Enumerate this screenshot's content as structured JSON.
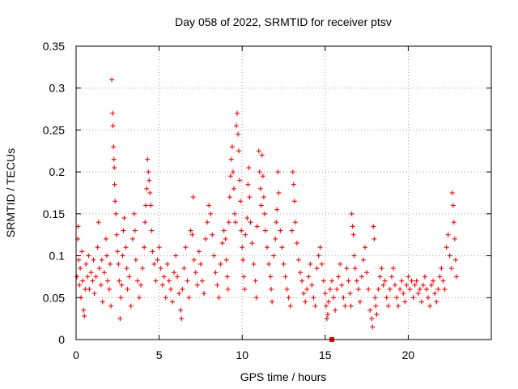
{
  "chart_data": {
    "type": "scatter",
    "title": "Day 058 of 2022, SRMTID for receiver ptsv",
    "xlabel": "GPS time / hours",
    "ylabel": "SRMTID / TECUs",
    "xlim": [
      0,
      25
    ],
    "ylim": [
      0,
      0.35
    ],
    "grid": true,
    "legend": "none",
    "marker": "plus",
    "color": "#ff0000",
    "x_ticks": [
      {
        "value": 0,
        "label": "0"
      },
      {
        "value": 5,
        "label": "5"
      },
      {
        "value": 10,
        "label": "10"
      },
      {
        "value": 15,
        "label": "15"
      },
      {
        "value": 20,
        "label": "20"
      }
    ],
    "y_ticks": [
      {
        "value": 0,
        "label": "0"
      },
      {
        "value": 0.05,
        "label": "0.05"
      },
      {
        "value": 0.1,
        "label": "0.1"
      },
      {
        "value": 0.15,
        "label": "0.15"
      },
      {
        "value": 0.2,
        "label": "0.2"
      },
      {
        "value": 0.25,
        "label": "0.25"
      },
      {
        "value": 0.3,
        "label": "0.3"
      },
      {
        "value": 0.35,
        "label": "0.35"
      }
    ],
    "series": [
      {
        "name": "SRMTID",
        "marker_at_zero_x": 15.4,
        "points": [
          [
            0.05,
            0.075
          ],
          [
            0.1,
            0.12
          ],
          [
            0.12,
            0.135
          ],
          [
            0.15,
            0.095
          ],
          [
            0.2,
            0.065
          ],
          [
            0.25,
            0.085
          ],
          [
            0.3,
            0.05
          ],
          [
            0.35,
            0.105
          ],
          [
            0.4,
            0.07
          ],
          [
            0.45,
            0.035
          ],
          [
            0.5,
            0.028
          ],
          [
            0.55,
            0.06
          ],
          [
            0.6,
            0.09
          ],
          [
            0.7,
            0.075
          ],
          [
            0.75,
            0.1
          ],
          [
            0.8,
            0.06
          ],
          [
            0.9,
            0.08
          ],
          [
            1.0,
            0.07
          ],
          [
            1.05,
            0.095
          ],
          [
            1.1,
            0.055
          ],
          [
            1.2,
            0.075
          ],
          [
            1.3,
            0.11
          ],
          [
            1.35,
            0.14
          ],
          [
            1.4,
            0.085
          ],
          [
            1.5,
            0.065
          ],
          [
            1.55,
            0.095
          ],
          [
            1.6,
            0.045
          ],
          [
            1.7,
            0.08
          ],
          [
            1.8,
            0.12
          ],
          [
            1.85,
            0.1
          ],
          [
            1.9,
            0.07
          ],
          [
            2.0,
            0.06
          ],
          [
            2.05,
            0.09
          ],
          [
            2.1,
            0.04
          ],
          [
            2.15,
            0.31
          ],
          [
            2.2,
            0.27
          ],
          [
            2.22,
            0.255
          ],
          [
            2.25,
            0.23
          ],
          [
            2.28,
            0.215
          ],
          [
            2.3,
            0.205
          ],
          [
            2.32,
            0.185
          ],
          [
            2.35,
            0.165
          ],
          [
            2.4,
            0.15
          ],
          [
            2.45,
            0.125
          ],
          [
            2.5,
            0.105
          ],
          [
            2.55,
            0.09
          ],
          [
            2.6,
            0.07
          ],
          [
            2.65,
            0.025
          ],
          [
            2.7,
            0.05
          ],
          [
            2.75,
            0.065
          ],
          [
            2.8,
            0.1
          ],
          [
            2.85,
            0.13
          ],
          [
            2.9,
            0.145
          ],
          [
            3.0,
            0.11
          ],
          [
            3.05,
            0.085
          ],
          [
            3.1,
            0.06
          ],
          [
            3.2,
            0.075
          ],
          [
            3.3,
            0.04
          ],
          [
            3.4,
            0.12
          ],
          [
            3.5,
            0.15
          ],
          [
            3.55,
            0.13
          ],
          [
            3.6,
            0.095
          ],
          [
            3.7,
            0.07
          ],
          [
            3.8,
            0.05
          ],
          [
            3.9,
            0.065
          ],
          [
            4.0,
            0.085
          ],
          [
            4.1,
            0.11
          ],
          [
            4.15,
            0.14
          ],
          [
            4.2,
            0.16
          ],
          [
            4.25,
            0.18
          ],
          [
            4.3,
            0.215
          ],
          [
            4.35,
            0.2
          ],
          [
            4.4,
            0.19
          ],
          [
            4.45,
            0.175
          ],
          [
            4.5,
            0.16
          ],
          [
            4.55,
            0.13
          ],
          [
            4.6,
            0.105
          ],
          [
            4.7,
            0.09
          ],
          [
            4.8,
            0.07
          ],
          [
            4.9,
            0.095
          ],
          [
            5.0,
            0.11
          ],
          [
            5.1,
            0.085
          ],
          [
            5.2,
            0.065
          ],
          [
            5.3,
            0.075
          ],
          [
            5.4,
            0.05
          ],
          [
            5.5,
            0.09
          ],
          [
            5.6,
            0.07
          ],
          [
            5.7,
            0.06
          ],
          [
            5.8,
            0.045
          ],
          [
            5.9,
            0.08
          ],
          [
            6.0,
            0.1
          ],
          [
            6.1,
            0.075
          ],
          [
            6.2,
            0.055
          ],
          [
            6.3,
            0.035
          ],
          [
            6.35,
            0.025
          ],
          [
            6.4,
            0.06
          ],
          [
            6.5,
            0.085
          ],
          [
            6.6,
            0.11
          ],
          [
            6.7,
            0.07
          ],
          [
            6.8,
            0.05
          ],
          [
            6.9,
            0.13
          ],
          [
            7.0,
            0.125
          ],
          [
            7.05,
            0.17
          ],
          [
            7.1,
            0.095
          ],
          [
            7.2,
            0.08
          ],
          [
            7.3,
            0.065
          ],
          [
            7.4,
            0.105
          ],
          [
            7.5,
            0.09
          ],
          [
            7.6,
            0.07
          ],
          [
            7.7,
            0.055
          ],
          [
            7.8,
            0.12
          ],
          [
            7.9,
            0.14
          ],
          [
            8.0,
            0.16
          ],
          [
            8.1,
            0.15
          ],
          [
            8.2,
            0.125
          ],
          [
            8.3,
            0.1
          ],
          [
            8.4,
            0.08
          ],
          [
            8.5,
            0.065
          ],
          [
            8.6,
            0.05
          ],
          [
            8.7,
            0.09
          ],
          [
            8.8,
            0.115
          ],
          [
            8.9,
            0.13
          ],
          [
            9.0,
            0.12
          ],
          [
            9.05,
            0.095
          ],
          [
            9.1,
            0.075
          ],
          [
            9.15,
            0.06
          ],
          [
            9.2,
            0.14
          ],
          [
            9.25,
            0.17
          ],
          [
            9.3,
            0.195
          ],
          [
            9.35,
            0.215
          ],
          [
            9.4,
            0.23
          ],
          [
            9.45,
            0.2
          ],
          [
            9.5,
            0.18
          ],
          [
            9.55,
            0.15
          ],
          [
            9.6,
            0.14
          ],
          [
            9.65,
            0.255
          ],
          [
            9.7,
            0.27
          ],
          [
            9.75,
            0.245
          ],
          [
            9.8,
            0.225
          ],
          [
            9.85,
            0.19
          ],
          [
            9.9,
            0.165
          ],
          [
            9.95,
            0.13
          ],
          [
            10.0,
            0.11
          ],
          [
            10.05,
            0.095
          ],
          [
            10.1,
            0.075
          ],
          [
            10.15,
            0.06
          ],
          [
            10.2,
            0.125
          ],
          [
            10.3,
            0.145
          ],
          [
            10.35,
            0.185
          ],
          [
            10.4,
            0.205
          ],
          [
            10.45,
            0.17
          ],
          [
            10.5,
            0.14
          ],
          [
            10.6,
            0.115
          ],
          [
            10.7,
            0.09
          ],
          [
            10.8,
            0.07
          ],
          [
            10.85,
            0.05
          ],
          [
            10.9,
            0.135
          ],
          [
            11.0,
            0.225
          ],
          [
            11.05,
            0.2
          ],
          [
            11.1,
            0.18
          ],
          [
            11.15,
            0.16
          ],
          [
            11.2,
            0.22
          ],
          [
            11.25,
            0.195
          ],
          [
            11.3,
            0.17
          ],
          [
            11.35,
            0.15
          ],
          [
            11.4,
            0.13
          ],
          [
            11.5,
            0.11
          ],
          [
            11.6,
            0.09
          ],
          [
            11.7,
            0.075
          ],
          [
            11.75,
            0.06
          ],
          [
            11.8,
            0.045
          ],
          [
            11.9,
            0.1
          ],
          [
            12.0,
            0.12
          ],
          [
            12.05,
            0.14
          ],
          [
            12.1,
            0.155
          ],
          [
            12.15,
            0.2
          ],
          [
            12.2,
            0.175
          ],
          [
            12.3,
            0.13
          ],
          [
            12.4,
            0.11
          ],
          [
            12.5,
            0.09
          ],
          [
            12.6,
            0.075
          ],
          [
            12.7,
            0.06
          ],
          [
            12.8,
            0.05
          ],
          [
            12.9,
            0.04
          ],
          [
            13.0,
            0.13
          ],
          [
            13.05,
            0.2
          ],
          [
            13.1,
            0.185
          ],
          [
            13.15,
            0.165
          ],
          [
            13.2,
            0.14
          ],
          [
            13.3,
            0.115
          ],
          [
            13.4,
            0.095
          ],
          [
            13.5,
            0.08
          ],
          [
            13.6,
            0.07
          ],
          [
            13.7,
            0.055
          ],
          [
            13.8,
            0.045
          ],
          [
            13.9,
            0.06
          ],
          [
            14.0,
            0.075
          ],
          [
            14.1,
            0.09
          ],
          [
            14.2,
            0.065
          ],
          [
            14.3,
            0.05
          ],
          [
            14.4,
            0.04
          ],
          [
            14.5,
            0.085
          ],
          [
            14.6,
            0.1
          ],
          [
            14.7,
            0.11
          ],
          [
            14.8,
            0.09
          ],
          [
            14.9,
            0.07
          ],
          [
            15.0,
            0.055
          ],
          [
            15.05,
            0.04
          ],
          [
            15.1,
            0.025
          ],
          [
            15.15,
            0.03
          ],
          [
            15.2,
            0.045
          ],
          [
            15.3,
            0.06
          ],
          [
            15.4,
            0.07
          ],
          [
            15.5,
            0.05
          ],
          [
            15.6,
            0.035
          ],
          [
            15.7,
            0.06
          ],
          [
            15.8,
            0.075
          ],
          [
            15.9,
            0.09
          ],
          [
            16.0,
            0.065
          ],
          [
            16.1,
            0.05
          ],
          [
            16.2,
            0.04
          ],
          [
            16.3,
            0.085
          ],
          [
            16.4,
            0.07
          ],
          [
            16.5,
            0.055
          ],
          [
            16.55,
            0.04
          ],
          [
            16.6,
            0.15
          ],
          [
            16.65,
            0.135
          ],
          [
            16.7,
            0.125
          ],
          [
            16.75,
            0.1
          ],
          [
            16.8,
            0.085
          ],
          [
            16.9,
            0.07
          ],
          [
            17.0,
            0.06
          ],
          [
            17.1,
            0.045
          ],
          [
            17.2,
            0.075
          ],
          [
            17.3,
            0.095
          ],
          [
            17.4,
            0.11
          ],
          [
            17.5,
            0.08
          ],
          [
            17.6,
            0.06
          ],
          [
            17.7,
            0.035
          ],
          [
            17.8,
            0.025
          ],
          [
            17.85,
            0.015
          ],
          [
            17.9,
            0.135
          ],
          [
            17.95,
            0.12
          ],
          [
            18.0,
            0.05
          ],
          [
            18.05,
            0.04
          ],
          [
            18.1,
            0.03
          ],
          [
            18.2,
            0.06
          ],
          [
            18.3,
            0.075
          ],
          [
            18.4,
            0.085
          ],
          [
            18.5,
            0.065
          ],
          [
            18.6,
            0.07
          ],
          [
            18.7,
            0.05
          ],
          [
            18.8,
            0.04
          ],
          [
            18.9,
            0.06
          ],
          [
            19.0,
            0.075
          ],
          [
            19.1,
            0.085
          ],
          [
            19.2,
            0.065
          ],
          [
            19.3,
            0.05
          ],
          [
            19.4,
            0.04
          ],
          [
            19.5,
            0.06
          ],
          [
            19.6,
            0.07
          ],
          [
            19.7,
            0.055
          ],
          [
            19.8,
            0.045
          ],
          [
            19.9,
            0.065
          ],
          [
            20.0,
            0.075
          ],
          [
            20.1,
            0.06
          ],
          [
            20.2,
            0.07
          ],
          [
            20.3,
            0.05
          ],
          [
            20.4,
            0.065
          ],
          [
            20.5,
            0.07
          ],
          [
            20.6,
            0.055
          ],
          [
            20.7,
            0.06
          ],
          [
            20.8,
            0.045
          ],
          [
            20.9,
            0.065
          ],
          [
            21.0,
            0.075
          ],
          [
            21.1,
            0.06
          ],
          [
            21.2,
            0.05
          ],
          [
            21.3,
            0.04
          ],
          [
            21.4,
            0.065
          ],
          [
            21.5,
            0.07
          ],
          [
            21.6,
            0.055
          ],
          [
            21.7,
            0.045
          ],
          [
            21.8,
            0.06
          ],
          [
            21.9,
            0.075
          ],
          [
            22.0,
            0.085
          ],
          [
            22.1,
            0.07
          ],
          [
            22.2,
            0.06
          ],
          [
            22.3,
            0.11
          ],
          [
            22.4,
            0.125
          ],
          [
            22.5,
            0.1
          ],
          [
            22.6,
            0.085
          ],
          [
            22.65,
            0.175
          ],
          [
            22.7,
            0.16
          ],
          [
            22.75,
            0.14
          ],
          [
            22.8,
            0.12
          ],
          [
            22.85,
            0.095
          ],
          [
            22.9,
            0.075
          ]
        ]
      }
    ]
  }
}
